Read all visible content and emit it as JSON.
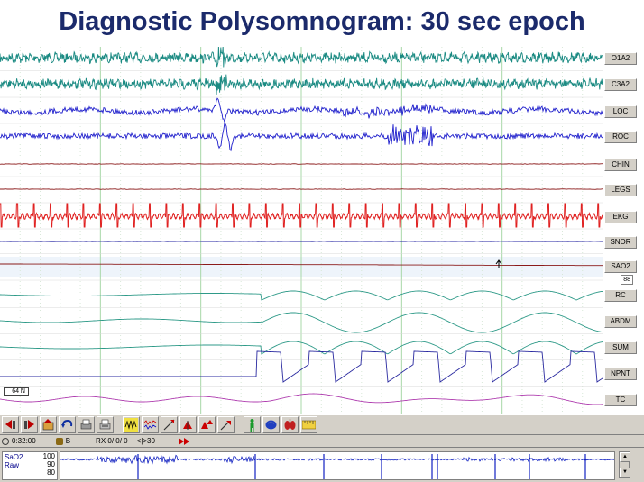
{
  "title": "Diagnostic Polysomnogram: 30 sec epoch",
  "channels": [
    {
      "label": "O1A2",
      "color": "#1a8a82"
    },
    {
      "label": "C3A2",
      "color": "#1a8a82"
    },
    {
      "label": "LOC",
      "color": "#1f1fcc"
    },
    {
      "label": "ROC",
      "color": "#1f1fcc"
    },
    {
      "label": "CHIN",
      "color": "#8b1a1a"
    },
    {
      "label": "LEGS",
      "color": "#8b1a1a"
    },
    {
      "label": "EKG",
      "color": "#e02020"
    },
    {
      "label": "SNOR",
      "color": "#1f1fa0"
    },
    {
      "label": "SAO2",
      "color": "#8b1a1a"
    },
    {
      "label": "RC",
      "color": "#2e9a88"
    },
    {
      "label": "ABDM",
      "color": "#2e9a88"
    },
    {
      "label": "SUM",
      "color": "#2e9a88"
    },
    {
      "label": "NPNT",
      "color": "#2a2aa0"
    },
    {
      "label": "TC",
      "color": "#b040b0"
    }
  ],
  "sao2_value": "88",
  "gain_label": "64 N",
  "toolbar": {
    "icons": [
      "page-back-icon",
      "page-forward-icon",
      "open-icon",
      "undo-icon",
      "print-icon",
      "print-preview-icon",
      "eeg-icon",
      "montage-icon",
      "marker-icon",
      "event-icon",
      "event-add-icon",
      "event-next-icon",
      "patient-icon",
      "brain-icon",
      "lungs-icon",
      "ruler-icon"
    ]
  },
  "statusbar": {
    "time": "0:32:00",
    "stage_label": "B",
    "rx_label": "RX 0/ 0/ 0",
    "epoch_label": "<|>30"
  },
  "bottom_pane": {
    "channel": "SaO2",
    "mode": "Raw",
    "scale_top": "100",
    "scale_mid": "90",
    "scale_bot": "80"
  }
}
